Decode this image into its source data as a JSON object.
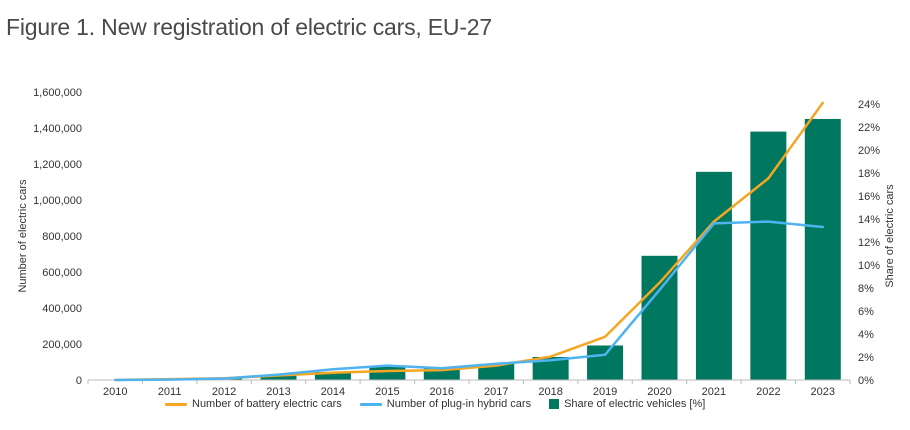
{
  "title": "Figure 1. New registration of electric cars, EU-27",
  "colors": {
    "bev": "#f5a623",
    "phev": "#4fb3f0",
    "share": "#00775f",
    "axis": "#bbbbbb"
  },
  "chart_data": {
    "type": "bar+line",
    "categories": [
      "2010",
      "2011",
      "2012",
      "2013",
      "2014",
      "2015",
      "2016",
      "2017",
      "2018",
      "2019",
      "2020",
      "2021",
      "2022",
      "2023"
    ],
    "ylabel": "Number of electric cars",
    "y2label": "Share of electric cars",
    "ylim": [
      0,
      1600000
    ],
    "y2lim": [
      0,
      25
    ],
    "yticks": [
      "0",
      "200,000",
      "400,000",
      "600,000",
      "800,000",
      "1,000,000",
      "1,200,000",
      "1,400,000",
      "1,600,000"
    ],
    "y2ticks": [
      "0%",
      "2%",
      "4%",
      "6%",
      "8%",
      "10%",
      "12%",
      "14%",
      "16%",
      "18%",
      "20%",
      "22%",
      "24%"
    ],
    "series": [
      {
        "name": "Number of battery electric cars",
        "kind": "line",
        "axis": "left",
        "values": [
          300,
          5000,
          10000,
          25000,
          40000,
          50000,
          55000,
          80000,
          130000,
          240000,
          540000,
          880000,
          1120000,
          1540000
        ]
      },
      {
        "name": "Number of plug-in hybrid cars",
        "kind": "line",
        "axis": "left",
        "values": [
          100,
          2000,
          8000,
          30000,
          60000,
          80000,
          65000,
          90000,
          110000,
          140000,
          500000,
          870000,
          880000,
          850000
        ]
      },
      {
        "name": "Share of electric vehicles [%]",
        "kind": "bar",
        "axis": "right",
        "values": [
          0,
          0.1,
          0.2,
          0.4,
          0.7,
          1.2,
          1.1,
          1.4,
          2.0,
          3.0,
          10.8,
          18.1,
          21.6,
          22.7
        ]
      }
    ],
    "legend_position": "bottom",
    "grid": false
  }
}
